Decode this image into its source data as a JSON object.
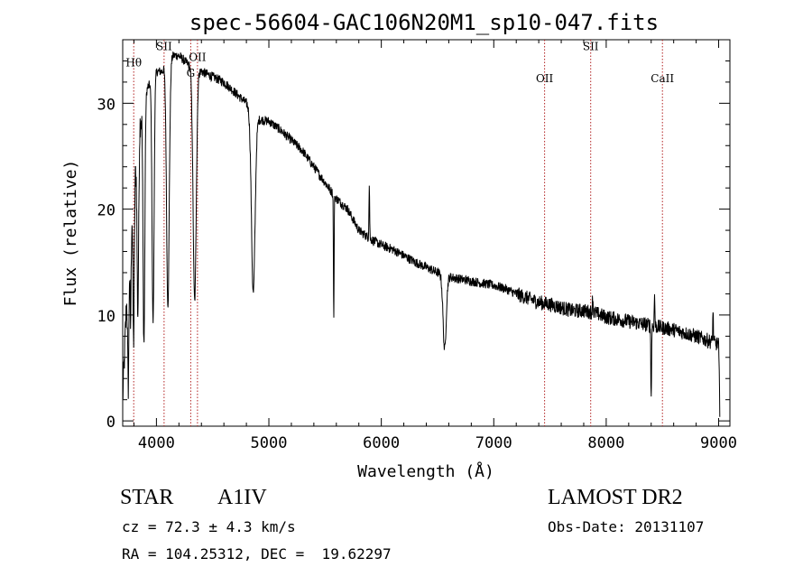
{
  "chart_data": {
    "type": "line",
    "title": "spec-56604-GAC106N20M1_sp10-047.fits",
    "xlabel": "Wavelength (Å)",
    "ylabel": "Flux (relative)",
    "xlim": [
      3700,
      9100
    ],
    "ylim": [
      -0.5,
      36
    ],
    "xticks": [
      4000,
      5000,
      6000,
      7000,
      8000,
      9000
    ],
    "xtick_labels": [
      "4000",
      "5000",
      "6000",
      "7000",
      "8000",
      "9000"
    ],
    "yticks": [
      0,
      10,
      20,
      30
    ],
    "ytick_labels": [
      "0",
      "10",
      "20",
      "30"
    ],
    "grid": false,
    "line_color": "#000000",
    "marker_color": "#b22222",
    "continuum": [
      [
        3700,
        2
      ],
      [
        3730,
        10
      ],
      [
        3760,
        18
      ],
      [
        3800,
        22
      ],
      [
        3850,
        28
      ],
      [
        3900,
        31
      ],
      [
        3950,
        32
      ],
      [
        4000,
        33
      ],
      [
        4050,
        33
      ],
      [
        4100,
        34
      ],
      [
        4150,
        34.5
      ],
      [
        4200,
        34.5
      ],
      [
        4300,
        33.5
      ],
      [
        4400,
        33
      ],
      [
        4500,
        32.5
      ],
      [
        4600,
        32
      ],
      [
        4700,
        31
      ],
      [
        4800,
        30
      ],
      [
        4900,
        28.5
      ],
      [
        5000,
        28.3
      ],
      [
        5100,
        27.5
      ],
      [
        5200,
        26.5
      ],
      [
        5300,
        25.5
      ],
      [
        5400,
        24
      ],
      [
        5500,
        22.5
      ],
      [
        5600,
        21
      ],
      [
        5700,
        20
      ],
      [
        5800,
        18
      ],
      [
        5900,
        17.2
      ],
      [
        6000,
        16.6
      ],
      [
        6100,
        16.2
      ],
      [
        6200,
        15.6
      ],
      [
        6300,
        15
      ],
      [
        6400,
        14.5
      ],
      [
        6500,
        14
      ],
      [
        6600,
        13.6
      ],
      [
        6700,
        13.4
      ],
      [
        6800,
        13.2
      ],
      [
        6900,
        13
      ],
      [
        7000,
        12.8
      ],
      [
        7100,
        12.5
      ],
      [
        7200,
        12
      ],
      [
        7300,
        11.6
      ],
      [
        7400,
        11.2
      ],
      [
        7500,
        11
      ],
      [
        7600,
        10.7
      ],
      [
        7700,
        10.4
      ],
      [
        7800,
        10.4
      ],
      [
        7900,
        10.2
      ],
      [
        8000,
        9.8
      ],
      [
        8100,
        9.6
      ],
      [
        8200,
        9.4
      ],
      [
        8300,
        9.2
      ],
      [
        8400,
        9
      ],
      [
        8500,
        8.8
      ],
      [
        8600,
        8.6
      ],
      [
        8700,
        8.3
      ],
      [
        8800,
        8
      ],
      [
        8900,
        7.6
      ],
      [
        9000,
        7.2
      ],
      [
        9010,
        1
      ]
    ],
    "absorption_features": [
      {
        "center": 3750,
        "depth": 12,
        "width": 6
      },
      {
        "center": 3770,
        "depth": 10,
        "width": 5
      },
      {
        "center": 3797,
        "depth": 14,
        "width": 6
      },
      {
        "center": 3835,
        "depth": 16,
        "width": 7
      },
      {
        "center": 3889,
        "depth": 23,
        "width": 8
      },
      {
        "center": 3970,
        "depth": 23,
        "width": 9
      },
      {
        "center": 4102,
        "depth": 23,
        "width": 12
      },
      {
        "center": 4340,
        "depth": 22,
        "width": 14
      },
      {
        "center": 4861,
        "depth": 17,
        "width": 16
      },
      {
        "center": 5577,
        "depth": 12,
        "width": 3
      },
      {
        "center": 6563,
        "depth": 7,
        "width": 14
      },
      {
        "center": 8400,
        "depth": 7,
        "width": 3
      }
    ],
    "emission_features": [
      {
        "center": 5893,
        "height": 5,
        "width": 3
      },
      {
        "center": 7880,
        "height": 1.5,
        "width": 3
      },
      {
        "center": 8430,
        "height": 3,
        "width": 3
      },
      {
        "center": 8950,
        "height": 3,
        "width": 3
      }
    ],
    "line_markers": [
      {
        "label": "Hθ",
        "x": 3798,
        "label_y": 33.5
      },
      {
        "label": "SII",
        "x": 4068,
        "label_y": 35
      },
      {
        "label": "G",
        "x": 4305,
        "label_y": 32.5
      },
      {
        "label": "OII",
        "x": 4365,
        "label_y": 34
      },
      {
        "label": "OII",
        "x": 7452,
        "label_y": 32
      },
      {
        "label": "SII",
        "x": 7862,
        "label_y": 35
      },
      {
        "label": "CaII",
        "x": 8500,
        "label_y": 32
      }
    ]
  },
  "info": {
    "object_class": "STAR",
    "subclass": "A1IV",
    "survey": "LAMOST DR2",
    "cz": "cz = 72.3 ± 4.3 km/s",
    "obs_date": "Obs-Date: 20131107",
    "coords": "RA = 104.25312, DEC =  19.62297"
  }
}
